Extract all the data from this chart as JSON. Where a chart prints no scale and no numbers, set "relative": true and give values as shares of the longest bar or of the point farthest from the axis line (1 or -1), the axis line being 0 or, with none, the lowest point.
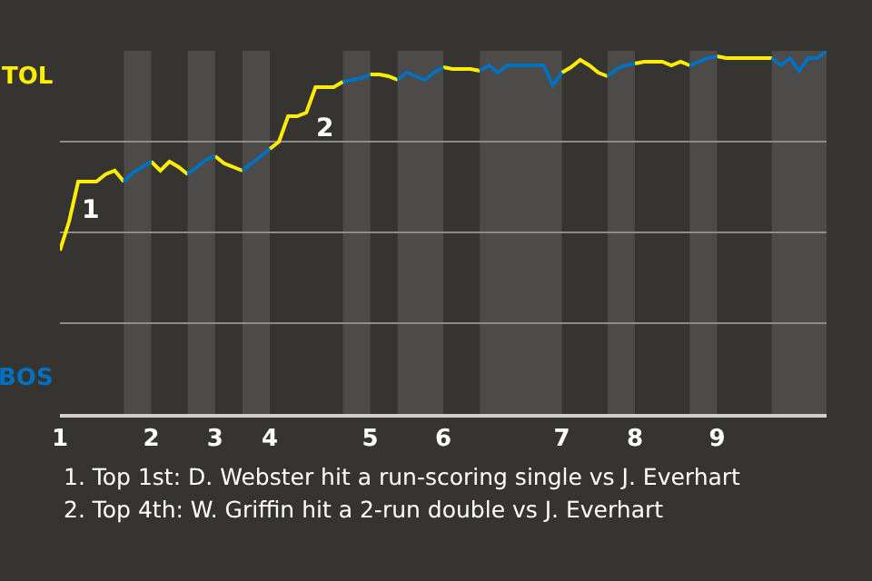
{
  "chart_data": {
    "type": "line",
    "relative": true,
    "categories": [
      "1",
      null,
      null,
      null,
      null,
      null,
      null,
      null,
      null,
      null,
      "2",
      null,
      null,
      null,
      null,
      null,
      null,
      "3",
      null,
      null,
      null,
      null,
      null,
      "4",
      null,
      null,
      null,
      null,
      null,
      null,
      null,
      null,
      null,
      null,
      "5",
      null,
      null,
      null,
      null,
      null,
      null,
      null,
      "6",
      null,
      null,
      null,
      null,
      null,
      null,
      null,
      null,
      null,
      null,
      null,
      null,
      "7",
      null,
      null,
      null,
      null,
      null,
      null,
      null,
      "8",
      null,
      null,
      null,
      null,
      null,
      null,
      null,
      null,
      "9",
      null,
      null,
      null,
      null,
      null,
      null,
      null,
      null,
      null,
      null,
      null,
      null
    ],
    "grid": "y",
    "marker": "none",
    "line_style": "solid",
    "series": [
      {
        "color": "#ffee00",
        "values": [
          0.45,
          0.53,
          0.64,
          0.64,
          0.64,
          0.66,
          0.67,
          0.64,
          null,
          null,
          0.695,
          0.67,
          0.695,
          0.68,
          0.66,
          null,
          null,
          0.71,
          0.69,
          0.68,
          0.67,
          null,
          null,
          0.73,
          0.75,
          0.82,
          0.82,
          0.83,
          0.9,
          0.9,
          0.9,
          0.915,
          null,
          null,
          0.935,
          0.935,
          0.93,
          0.92,
          null,
          null,
          null,
          null,
          0.955,
          0.95,
          0.95,
          0.95,
          0.945,
          null,
          null,
          null,
          null,
          null,
          null,
          null,
          null,
          0.94,
          0.955,
          0.975,
          0.96,
          0.94,
          0.93,
          null,
          null,
          0.965,
          0.97,
          0.97,
          0.97,
          0.96,
          0.97,
          0.96,
          null,
          null,
          0.985,
          0.98,
          0.98,
          0.98,
          0.98,
          0.98,
          0.98,
          null,
          null,
          null,
          null,
          null,
          null
        ]
      },
      {
        "color": "#0070c0",
        "values": [
          null,
          null,
          null,
          null,
          null,
          null,
          null,
          0.64,
          0.665,
          0.68,
          0.695,
          null,
          null,
          null,
          0.66,
          0.68,
          0.7,
          0.71,
          null,
          null,
          0.67,
          0.69,
          0.71,
          0.73,
          null,
          null,
          null,
          null,
          null,
          null,
          null,
          0.915,
          0.92,
          0.925,
          0.935,
          null,
          null,
          0.92,
          0.94,
          0.93,
          0.92,
          0.94,
          0.955,
          null,
          null,
          null,
          0.945,
          0.96,
          0.94,
          0.96,
          0.96,
          0.96,
          0.96,
          0.96,
          0.905,
          0.94,
          null,
          null,
          null,
          null,
          0.93,
          0.95,
          0.96,
          0.965,
          null,
          null,
          null,
          null,
          null,
          0.96,
          0.97,
          0.98,
          0.985,
          null,
          null,
          null,
          null,
          null,
          0.98,
          0.96,
          0.98,
          0.945,
          0.98,
          0.98,
          1.0
        ]
      }
    ],
    "annotations": [
      "TOL",
      "BOS",
      "1",
      "2",
      "1. Top 1st: D. Webster hit a run-scoring single vs J. Everhart",
      "2. Top 4th: W. Griffin hit a 2-run double vs J. Everhart"
    ]
  }
}
